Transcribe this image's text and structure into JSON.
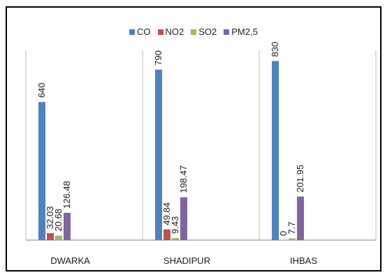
{
  "chart_data": {
    "type": "bar",
    "title": "",
    "xlabel": "",
    "ylabel": "",
    "categories": [
      "DWARKA",
      "SHADIPUR",
      "IHBAS"
    ],
    "series": [
      {
        "name": "CO",
        "color": "#4f81bd",
        "values": [
          640,
          790,
          830
        ],
        "labels": [
          "640",
          "790",
          "830"
        ]
      },
      {
        "name": "NO2",
        "color": "#c0504d",
        "values": [
          32.03,
          49.84,
          0
        ],
        "labels": [
          "32.03",
          "49.84",
          "0"
        ]
      },
      {
        "name": "SO2",
        "color": "#9bbb59",
        "values": [
          20.68,
          9.43,
          7.7
        ],
        "labels": [
          "20.68",
          "9.43",
          "7.7"
        ]
      },
      {
        "name": "PM2,5",
        "color": "#8064a2",
        "values": [
          126.48,
          198.47,
          201.95
        ],
        "labels": [
          "126.48",
          "198.47",
          "201.95"
        ]
      }
    ],
    "ylim": [
      0,
      880
    ],
    "grid": "vertical-category-separators",
    "legend": "top-center",
    "data_labels": "rotated-vertical"
  }
}
